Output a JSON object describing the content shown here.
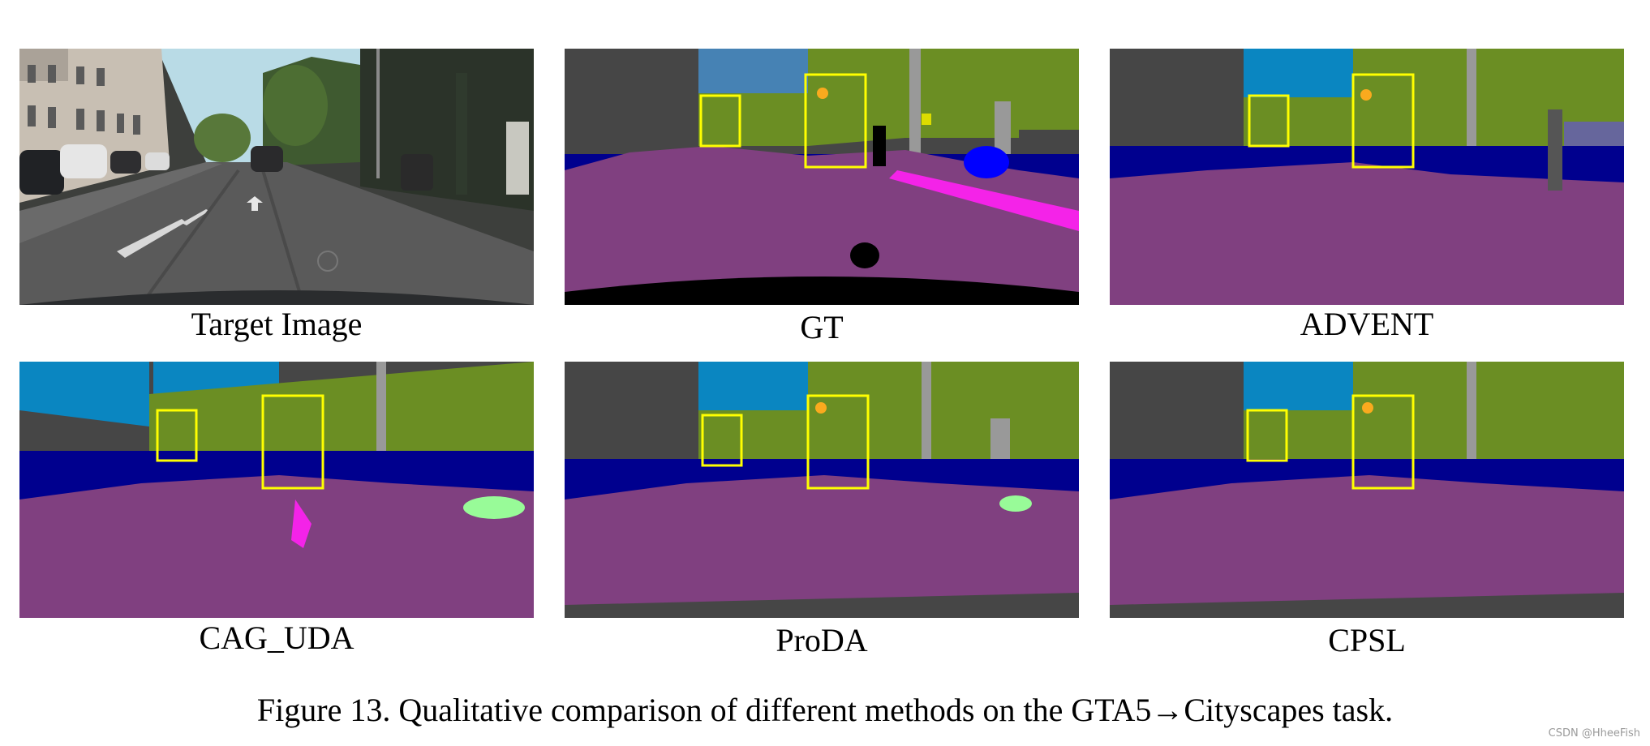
{
  "panels": [
    {
      "id": "target",
      "caption": "Target Image"
    },
    {
      "id": "gt",
      "caption": "GT"
    },
    {
      "id": "advent",
      "caption": "ADVENT"
    },
    {
      "id": "cag_uda",
      "caption": "CAG_UDA"
    },
    {
      "id": "proda",
      "caption": "ProDA"
    },
    {
      "id": "cpsl",
      "caption": "CPSL"
    }
  ],
  "figure_caption": "Figure 13. Qualitative comparison of different methods on the GTA5→Cityscapes task.",
  "watermark": "CSDN @HheeFish",
  "colors": {
    "road": "#804080",
    "building": "#464646",
    "sky": "#4682b4",
    "sky_pred": "#0a86c1",
    "vegetation": "#6b8e23",
    "car": "#00008e",
    "car_bright": "#0000ff",
    "pole": "#999999",
    "sidewalk": "#f423e8",
    "terrain": "#98fb98",
    "wall": "#66669c",
    "fence": "#be9999",
    "traffic_light": "#faaa1e",
    "traffic_sign": "#dcdc00",
    "highlight_box": "#ffff00"
  }
}
